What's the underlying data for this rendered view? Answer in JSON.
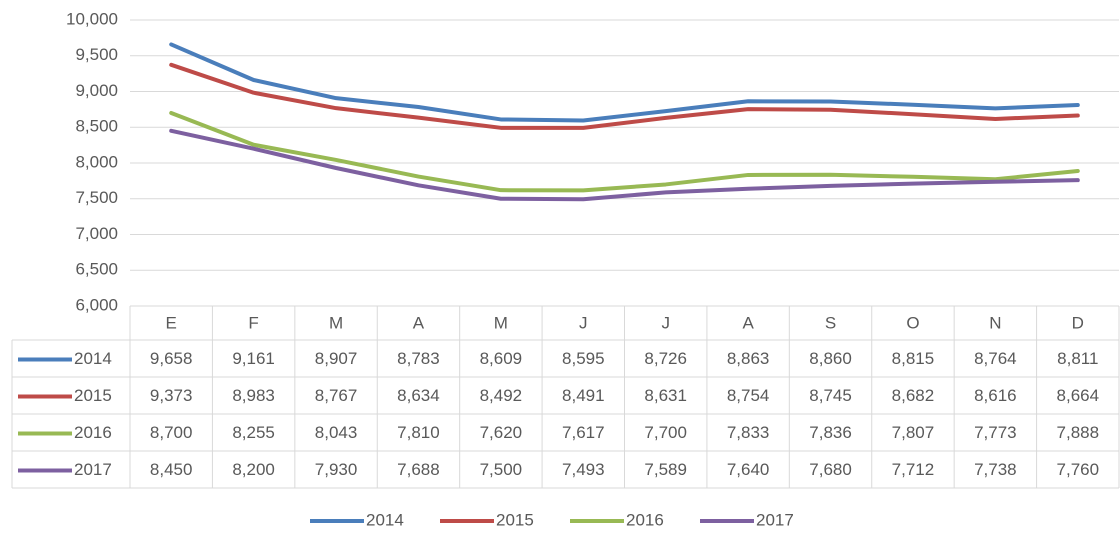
{
  "chart_data": {
    "type": "line",
    "categories": [
      "E",
      "F",
      "M",
      "A",
      "M",
      "J",
      "J",
      "A",
      "S",
      "O",
      "N",
      "D"
    ],
    "ylim": [
      6000,
      10000
    ],
    "yticks": [
      {
        "value": 6000,
        "label": "6,000"
      },
      {
        "value": 6500,
        "label": "6,500"
      },
      {
        "value": 7000,
        "label": "7,000"
      },
      {
        "value": 7500,
        "label": "7,500"
      },
      {
        "value": 8000,
        "label": "8,000"
      },
      {
        "value": 8500,
        "label": "8,500"
      },
      {
        "value": 9000,
        "label": "9,000"
      },
      {
        "value": 9500,
        "label": "9,500"
      },
      {
        "value": 10000,
        "label": "10,000"
      }
    ],
    "grid": true,
    "legend": "bottom",
    "series": [
      {
        "name": "2014",
        "color": "#4a7ebb",
        "values": [
          9658,
          9161,
          8907,
          8783,
          8609,
          8595,
          8726,
          8863,
          8860,
          8815,
          8764,
          8811
        ],
        "value_labels": [
          "9,658",
          "9,161",
          "8,907",
          "8,783",
          "8,609",
          "8,595",
          "8,726",
          "8,863",
          "8,860",
          "8,815",
          "8,764",
          "8,811"
        ]
      },
      {
        "name": "2015",
        "color": "#be4b48",
        "values": [
          9373,
          8983,
          8767,
          8634,
          8492,
          8491,
          8631,
          8754,
          8745,
          8682,
          8616,
          8664
        ],
        "value_labels": [
          "9,373",
          "8,983",
          "8,767",
          "8,634",
          "8,492",
          "8,491",
          "8,631",
          "8,754",
          "8,745",
          "8,682",
          "8,616",
          "8,664"
        ]
      },
      {
        "name": "2016",
        "color": "#98b954",
        "values": [
          8700,
          8255,
          8043,
          7810,
          7620,
          7617,
          7700,
          7833,
          7836,
          7807,
          7773,
          7888
        ],
        "value_labels": [
          "8,700",
          "8,255",
          "8,043",
          "7,810",
          "7,620",
          "7,617",
          "7,700",
          "7,833",
          "7,836",
          "7,807",
          "7,773",
          "7,888"
        ]
      },
      {
        "name": "2017",
        "color": "#7d60a0",
        "values": [
          8450,
          8200,
          7930,
          7688,
          7500,
          7493,
          7589,
          7640,
          7680,
          7712,
          7738,
          7760
        ],
        "value_labels": [
          "8,450",
          "8,200",
          "7,930",
          "7,688",
          "7,500",
          "7,493",
          "7,589",
          "7,640",
          "7,680",
          "7,712",
          "7,738",
          "7,760"
        ]
      }
    ]
  }
}
